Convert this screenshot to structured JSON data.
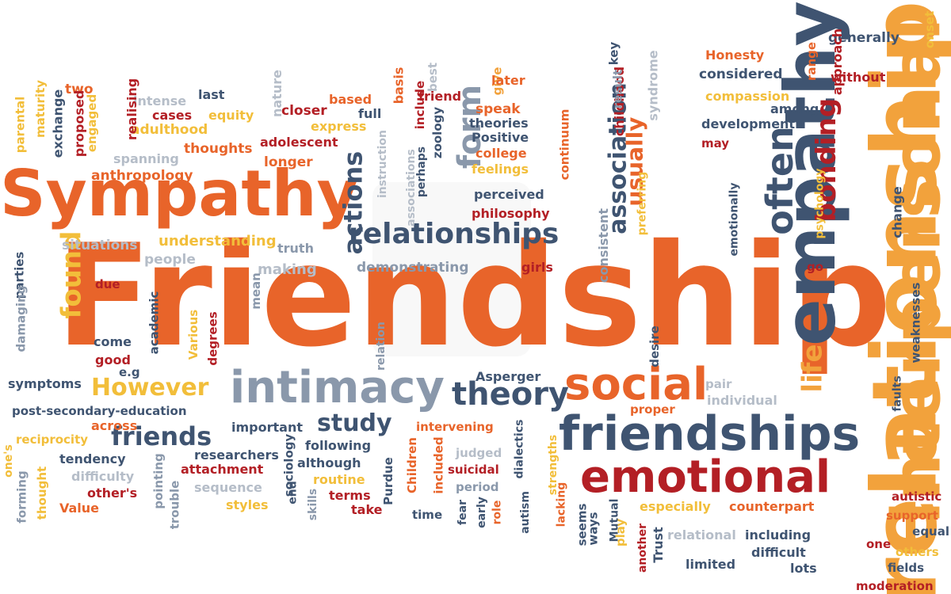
{
  "palette": {
    "orange": "#e8642a",
    "orange_light": "#f2a23c",
    "yellow": "#f2be3a",
    "slate": "#3f5471",
    "grey": "#8a98ab",
    "red": "#b31f25",
    "pale_grey": "#b5bdc8"
  },
  "words": [
    {
      "text": "Friendship",
      "color": "orange",
      "icon": null
    },
    {
      "text": "empathy",
      "color": "slate"
    },
    {
      "text": "relationship",
      "color": "orange_light"
    },
    {
      "text": "interpersonal",
      "color": "orange_light"
    },
    {
      "text": "Sympathy",
      "color": "orange"
    },
    {
      "text": "friendships",
      "color": "slate"
    },
    {
      "text": "emotional",
      "color": "red"
    },
    {
      "text": "intimacy",
      "color": "grey"
    },
    {
      "text": "social",
      "color": "orange"
    },
    {
      "text": "theory",
      "color": "slate"
    },
    {
      "text": "relationships",
      "color": "slate"
    },
    {
      "text": "often",
      "color": "slate"
    },
    {
      "text": "bonding",
      "color": "red"
    },
    {
      "text": "association",
      "color": "slate"
    },
    {
      "text": "actions",
      "color": "slate"
    },
    {
      "text": "form",
      "color": "grey"
    },
    {
      "text": "usually",
      "color": "orange"
    },
    {
      "text": "life",
      "color": "orange_light"
    },
    {
      "text": "However",
      "color": "yellow"
    },
    {
      "text": "friends",
      "color": "slate"
    },
    {
      "text": "study",
      "color": "slate"
    },
    {
      "text": "found",
      "color": "yellow"
    },
    {
      "text": "demonstrating",
      "color": "grey"
    },
    {
      "text": "understanding",
      "color": "yellow"
    },
    {
      "text": "situations",
      "color": "pale_grey"
    },
    {
      "text": "people",
      "color": "pale_grey"
    },
    {
      "text": "making",
      "color": "pale_grey"
    },
    {
      "text": "truth",
      "color": "grey"
    },
    {
      "text": "perceived",
      "color": "slate"
    },
    {
      "text": "philosophy",
      "color": "red"
    },
    {
      "text": "consistent",
      "color": "grey"
    },
    {
      "text": "girls",
      "color": "red"
    },
    {
      "text": "anthropology",
      "color": "orange"
    },
    {
      "text": "spanning",
      "color": "pale_grey"
    },
    {
      "text": "thoughts",
      "color": "orange"
    },
    {
      "text": "adolescent",
      "color": "red"
    },
    {
      "text": "longer",
      "color": "orange"
    },
    {
      "text": "adulthood",
      "color": "yellow"
    },
    {
      "text": "cases",
      "color": "red"
    },
    {
      "text": "equity",
      "color": "yellow"
    },
    {
      "text": "closer",
      "color": "red"
    },
    {
      "text": "based",
      "color": "orange"
    },
    {
      "text": "full",
      "color": "slate"
    },
    {
      "text": "express",
      "color": "yellow"
    },
    {
      "text": "intense",
      "color": "pale_grey"
    },
    {
      "text": "last",
      "color": "slate"
    },
    {
      "text": "nature",
      "color": "pale_grey"
    },
    {
      "text": "realising",
      "color": "red"
    },
    {
      "text": "two",
      "color": "orange"
    },
    {
      "text": "maturity",
      "color": "yellow"
    },
    {
      "text": "parental",
      "color": "yellow"
    },
    {
      "text": "exchange",
      "color": "slate"
    },
    {
      "text": "proposed",
      "color": "red"
    },
    {
      "text": "engaged",
      "color": "yellow"
    },
    {
      "text": "basis",
      "color": "orange"
    },
    {
      "text": "include",
      "color": "red"
    },
    {
      "text": "best",
      "color": "pale_grey"
    },
    {
      "text": "friend",
      "color": "red"
    },
    {
      "text": "give",
      "color": "orange_light"
    },
    {
      "text": "later",
      "color": "orange"
    },
    {
      "text": "speak",
      "color": "orange"
    },
    {
      "text": "theories",
      "color": "slate"
    },
    {
      "text": "Positive",
      "color": "slate"
    },
    {
      "text": "college",
      "color": "orange"
    },
    {
      "text": "feelings",
      "color": "yellow"
    },
    {
      "text": "continuum",
      "color": "orange"
    },
    {
      "text": "childhood",
      "color": "red"
    },
    {
      "text": "result",
      "color": "grey"
    },
    {
      "text": "key",
      "color": "slate"
    },
    {
      "text": "syndrome",
      "color": "pale_grey"
    },
    {
      "text": "Honesty",
      "color": "orange"
    },
    {
      "text": "considered",
      "color": "slate"
    },
    {
      "text": "compassion",
      "color": "yellow"
    },
    {
      "text": "development",
      "color": "slate"
    },
    {
      "text": "among",
      "color": "slate"
    },
    {
      "text": "may",
      "color": "red"
    },
    {
      "text": "generally",
      "color": "slate"
    },
    {
      "text": "without",
      "color": "red"
    },
    {
      "text": "range",
      "color": "orange"
    },
    {
      "text": "approach",
      "color": "red"
    },
    {
      "text": "onset",
      "color": "yellow"
    },
    {
      "text": "change",
      "color": "slate"
    },
    {
      "text": "psychology",
      "color": "yellow"
    },
    {
      "text": "go",
      "color": "red"
    },
    {
      "text": "emotionally",
      "color": "slate"
    },
    {
      "text": "preferring",
      "color": "yellow"
    },
    {
      "text": "desire",
      "color": "slate"
    },
    {
      "text": "weaknesses",
      "color": "slate"
    },
    {
      "text": "faults",
      "color": "slate"
    },
    {
      "text": "pair",
      "color": "pale_grey"
    },
    {
      "text": "individual",
      "color": "pale_grey"
    },
    {
      "text": "proper",
      "color": "orange"
    },
    {
      "text": "Asperger",
      "color": "slate"
    },
    {
      "text": "parties",
      "color": "slate"
    },
    {
      "text": "due",
      "color": "red"
    },
    {
      "text": "mean",
      "color": "grey"
    },
    {
      "text": "academic",
      "color": "slate"
    },
    {
      "text": "damaging",
      "color": "grey"
    },
    {
      "text": "Various",
      "color": "yellow"
    },
    {
      "text": "degrees",
      "color": "red"
    },
    {
      "text": "come",
      "color": "slate"
    },
    {
      "text": "good",
      "color": "red"
    },
    {
      "text": "e.g",
      "color": "slate"
    },
    {
      "text": "relation",
      "color": "grey"
    },
    {
      "text": "symptoms",
      "color": "slate"
    },
    {
      "text": "post-secondary-education",
      "color": "slate"
    },
    {
      "text": "across",
      "color": "orange"
    },
    {
      "text": "reciprocity",
      "color": "yellow"
    },
    {
      "text": "tendency",
      "color": "slate"
    },
    {
      "text": "difficulty",
      "color": "pale_grey"
    },
    {
      "text": "other's",
      "color": "red"
    },
    {
      "text": "Value",
      "color": "orange"
    },
    {
      "text": "one's",
      "color": "yellow"
    },
    {
      "text": "thought",
      "color": "yellow"
    },
    {
      "text": "forming",
      "color": "grey"
    },
    {
      "text": "pointing",
      "color": "grey"
    },
    {
      "text": "important",
      "color": "slate"
    },
    {
      "text": "researchers",
      "color": "slate"
    },
    {
      "text": "attachment",
      "color": "red"
    },
    {
      "text": "sequence",
      "color": "pale_grey"
    },
    {
      "text": "styles",
      "color": "yellow"
    },
    {
      "text": "trouble",
      "color": "grey"
    },
    {
      "text": "sociology",
      "color": "slate"
    },
    {
      "text": "following",
      "color": "slate"
    },
    {
      "text": "although",
      "color": "slate"
    },
    {
      "text": "routine",
      "color": "yellow"
    },
    {
      "text": "terms",
      "color": "red"
    },
    {
      "text": "take",
      "color": "red"
    },
    {
      "text": "end",
      "color": "slate"
    },
    {
      "text": "skills",
      "color": "grey"
    },
    {
      "text": "intervening",
      "color": "orange"
    },
    {
      "text": "judged",
      "color": "pale_grey"
    },
    {
      "text": "suicidal",
      "color": "red"
    },
    {
      "text": "period",
      "color": "grey"
    },
    {
      "text": "Children",
      "color": "orange"
    },
    {
      "text": "Purdue",
      "color": "slate"
    },
    {
      "text": "included",
      "color": "orange"
    },
    {
      "text": "time",
      "color": "slate"
    },
    {
      "text": "fear",
      "color": "slate"
    },
    {
      "text": "early",
      "color": "slate"
    },
    {
      "text": "role",
      "color": "orange"
    },
    {
      "text": "autism",
      "color": "slate"
    },
    {
      "text": "dialectics",
      "color": "slate"
    },
    {
      "text": "strengths",
      "color": "yellow"
    },
    {
      "text": "lacking",
      "color": "orange"
    },
    {
      "text": "seems",
      "color": "slate"
    },
    {
      "text": "ways",
      "color": "slate"
    },
    {
      "text": "Mutual",
      "color": "slate"
    },
    {
      "text": "play",
      "color": "yellow"
    },
    {
      "text": "another",
      "color": "red"
    },
    {
      "text": "Trust",
      "color": "slate"
    },
    {
      "text": "especially",
      "color": "yellow"
    },
    {
      "text": "counterpart",
      "color": "orange"
    },
    {
      "text": "relational",
      "color": "pale_grey"
    },
    {
      "text": "including",
      "color": "slate"
    },
    {
      "text": "difficult",
      "color": "slate"
    },
    {
      "text": "limited",
      "color": "slate"
    },
    {
      "text": "lots",
      "color": "slate"
    },
    {
      "text": "autistic",
      "color": "red"
    },
    {
      "text": "support",
      "color": "orange"
    },
    {
      "text": "equal",
      "color": "slate"
    },
    {
      "text": "one",
      "color": "red"
    },
    {
      "text": "others",
      "color": "yellow"
    },
    {
      "text": "fields",
      "color": "slate"
    },
    {
      "text": "moderation",
      "color": "red"
    },
    {
      "text": "zoology",
      "color": "slate"
    },
    {
      "text": "perhaps",
      "color": "slate"
    },
    {
      "text": "associations",
      "color": "pale_grey"
    },
    {
      "text": "instruction",
      "color": "pale_grey"
    }
  ]
}
